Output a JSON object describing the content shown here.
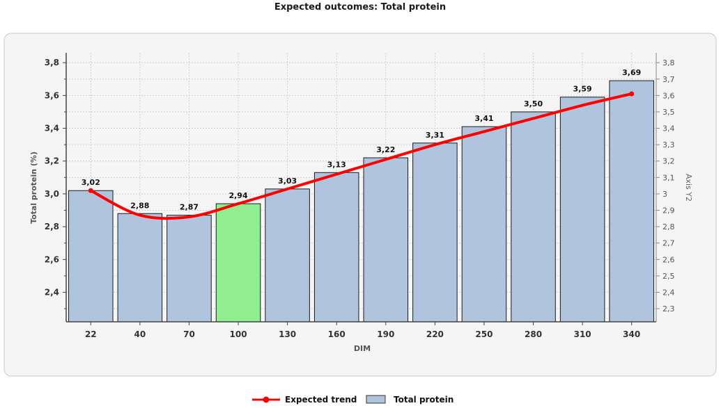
{
  "chart_data": {
    "type": "bar",
    "title": "Expected outcomes: Total protein",
    "xlabel": "DIM",
    "ylabel": "Total protein (%)",
    "y2label": "Axis Y2",
    "categories": [
      "22",
      "40",
      "70",
      "100",
      "130",
      "160",
      "190",
      "220",
      "250",
      "280",
      "310",
      "340"
    ],
    "series": [
      {
        "name": "Total protein",
        "type": "bar",
        "values": [
          3.02,
          2.88,
          2.87,
          2.94,
          3.03,
          3.13,
          3.22,
          3.31,
          3.41,
          3.5,
          3.59,
          3.69
        ],
        "labels": [
          "3,02",
          "2,88",
          "2,87",
          "2,94",
          "3,03",
          "3,13",
          "3,22",
          "3,31",
          "3,41",
          "3,50",
          "3,59",
          "3,69"
        ],
        "color": "#b0c4de",
        "highlight_index": 3,
        "highlight_color": "#90ee90"
      },
      {
        "name": "Expected trend",
        "type": "line",
        "values": [
          3.02,
          2.87,
          2.86,
          2.94,
          3.03,
          3.12,
          3.21,
          3.3,
          3.38,
          3.46,
          3.54,
          3.61
        ],
        "color": "#ff0000"
      }
    ],
    "ylim": [
      2.22,
      3.86
    ],
    "yticks": [
      "3,8",
      "3,6",
      "3,4",
      "3,2",
      "3,0",
      "2,8",
      "2,6",
      "2,4"
    ],
    "ytick_values": [
      3.8,
      3.6,
      3.4,
      3.2,
      3.0,
      2.8,
      2.6,
      2.4
    ],
    "y2lim": [
      2.22,
      3.86
    ],
    "y2ticks": [
      "3,8",
      "3,7",
      "3,6",
      "3,5",
      "3,4",
      "3,3",
      "3,2",
      "3,1",
      "3",
      "2,9",
      "2,8",
      "2,7",
      "2,6",
      "2,5",
      "2,4",
      "2,3"
    ],
    "y2tick_values": [
      3.8,
      3.7,
      3.6,
      3.5,
      3.4,
      3.3,
      3.2,
      3.1,
      3.0,
      2.9,
      2.8,
      2.7,
      2.6,
      2.5,
      2.4,
      2.3
    ],
    "grid": true,
    "legend_position": "bottom-center",
    "legend": [
      {
        "label": "Expected trend",
        "type": "line",
        "color": "#ff0000"
      },
      {
        "label": "Total protein",
        "type": "bar",
        "color": "#b0c4de"
      }
    ]
  }
}
